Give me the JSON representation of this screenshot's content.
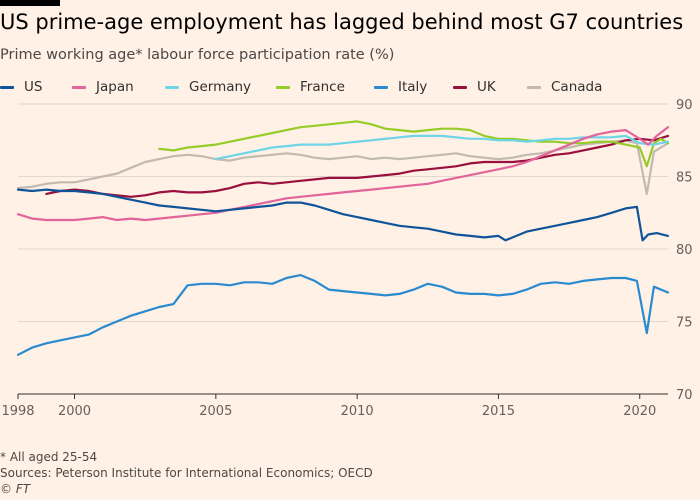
{
  "header": {
    "title": "US prime-age employment has lagged behind most G7 countries",
    "subtitle": "Prime working age* labour force participation rate (%)"
  },
  "footer": {
    "note": "* All aged 25-54",
    "source": "Sources: Peterson Institute for International Economics; OECD",
    "credit": "© FT"
  },
  "chart_data": {
    "type": "line",
    "title": "US prime-age employment has lagged behind most G7 countries",
    "subtitle": "Prime working age* labour force participation rate (%)",
    "xlim": [
      1998,
      2021
    ],
    "ylim": [
      70,
      90
    ],
    "x_ticks": [
      1998,
      2000,
      2005,
      2010,
      2015,
      2020
    ],
    "y_ticks": [
      70,
      75,
      80,
      85,
      90
    ],
    "grid": "horizontal",
    "legend_position": "top",
    "series": [
      {
        "name": "US",
        "color": "#0f5499",
        "x": [
          1998,
          1998.5,
          1999,
          1999.5,
          2000,
          2000.5,
          2001,
          2001.5,
          2002,
          2002.5,
          2003,
          2003.5,
          2004,
          2004.5,
          2005,
          2005.5,
          2006,
          2006.5,
          2007,
          2007.5,
          2008,
          2008.5,
          2009,
          2009.5,
          2010,
          2010.5,
          2011,
          2011.5,
          2012,
          2012.5,
          2013,
          2013.5,
          2014,
          2014.5,
          2015,
          2015.25,
          2015.5,
          2016,
          2016.5,
          2017,
          2017.5,
          2018,
          2018.5,
          2019,
          2019.5,
          2019.9,
          2020.1,
          2020.3,
          2020.6,
          2021
        ],
        "values": [
          84.1,
          84.0,
          84.1,
          84.0,
          84.0,
          83.9,
          83.8,
          83.6,
          83.4,
          83.2,
          83.0,
          82.9,
          82.8,
          82.7,
          82.6,
          82.7,
          82.8,
          82.9,
          83.0,
          83.2,
          83.2,
          83.0,
          82.7,
          82.4,
          82.2,
          82.0,
          81.8,
          81.6,
          81.5,
          81.4,
          81.2,
          81.0,
          80.9,
          80.8,
          80.9,
          80.6,
          80.8,
          81.2,
          81.4,
          81.6,
          81.8,
          82.0,
          82.2,
          82.5,
          82.8,
          82.9,
          80.6,
          81.0,
          81.1,
          80.9
        ]
      },
      {
        "name": "Japan",
        "color": "#e3649b",
        "x": [
          1998,
          1998.5,
          1999,
          1999.5,
          2000,
          2000.5,
          2001,
          2001.5,
          2002,
          2002.5,
          2003,
          2003.5,
          2004,
          2004.5,
          2005,
          2005.5,
          2006,
          2006.5,
          2007,
          2007.5,
          2008,
          2008.5,
          2009,
          2009.5,
          2010,
          2010.5,
          2011,
          2011.5,
          2012,
          2012.5,
          2013,
          2013.5,
          2014,
          2014.5,
          2015,
          2015.5,
          2016,
          2016.5,
          2017,
          2017.5,
          2018,
          2018.5,
          2019,
          2019.5,
          2020,
          2020.3,
          2020.6,
          2021
        ],
        "values": [
          82.4,
          82.1,
          82.0,
          82.0,
          82.0,
          82.1,
          82.2,
          82.0,
          82.1,
          82.0,
          82.1,
          82.2,
          82.3,
          82.4,
          82.5,
          82.7,
          82.9,
          83.1,
          83.3,
          83.5,
          83.6,
          83.7,
          83.8,
          83.9,
          84.0,
          84.1,
          84.2,
          84.3,
          84.4,
          84.5,
          84.7,
          84.9,
          85.1,
          85.3,
          85.5,
          85.7,
          86.0,
          86.4,
          86.8,
          87.2,
          87.6,
          87.9,
          88.1,
          88.2,
          87.6,
          87.2,
          87.8,
          88.4
        ]
      },
      {
        "name": "Germany",
        "color": "#6ed4e8",
        "x": [
          2005,
          2005.5,
          2006,
          2006.5,
          2007,
          2007.5,
          2008,
          2008.5,
          2009,
          2009.5,
          2010,
          2010.5,
          2011,
          2011.5,
          2012,
          2012.5,
          2013,
          2013.5,
          2014,
          2014.5,
          2015,
          2015.5,
          2016,
          2016.5,
          2017,
          2017.5,
          2018,
          2018.5,
          2019,
          2019.5,
          2020,
          2020.5,
          2021
        ],
        "values": [
          86.2,
          86.4,
          86.6,
          86.8,
          87.0,
          87.1,
          87.2,
          87.2,
          87.2,
          87.3,
          87.4,
          87.5,
          87.6,
          87.7,
          87.8,
          87.8,
          87.8,
          87.7,
          87.6,
          87.6,
          87.5,
          87.5,
          87.4,
          87.5,
          87.6,
          87.6,
          87.7,
          87.7,
          87.7,
          87.8,
          87.3,
          87.2,
          87.4
        ]
      },
      {
        "name": "France",
        "color": "#96cc28",
        "x": [
          2003,
          2003.5,
          2004,
          2004.5,
          2005,
          2005.5,
          2006,
          2006.5,
          2007,
          2007.5,
          2008,
          2008.5,
          2009,
          2009.5,
          2010,
          2010.5,
          2011,
          2011.5,
          2012,
          2012.5,
          2013,
          2013.5,
          2014,
          2014.5,
          2015,
          2015.5,
          2016,
          2016.5,
          2017,
          2017.5,
          2018,
          2018.5,
          2019,
          2019.5,
          2020,
          2020.25,
          2020.5,
          2020.75,
          2021
        ],
        "values": [
          86.9,
          86.8,
          87.0,
          87.1,
          87.2,
          87.4,
          87.6,
          87.8,
          88.0,
          88.2,
          88.4,
          88.5,
          88.6,
          88.7,
          88.8,
          88.6,
          88.3,
          88.2,
          88.1,
          88.2,
          88.3,
          88.3,
          88.2,
          87.8,
          87.6,
          87.6,
          87.5,
          87.4,
          87.4,
          87.3,
          87.3,
          87.4,
          87.4,
          87.2,
          87.0,
          85.7,
          87.3,
          87.6,
          87.3
        ]
      },
      {
        "name": "Italy",
        "color": "#2a8ad0",
        "x": [
          1998,
          1998.5,
          1999,
          1999.5,
          2000,
          2000.5,
          2001,
          2001.5,
          2002,
          2002.5,
          2003,
          2003.5,
          2004,
          2004.5,
          2005,
          2005.5,
          2006,
          2006.5,
          2007,
          2007.5,
          2008,
          2008.5,
          2009,
          2009.5,
          2010,
          2010.5,
          2011,
          2011.5,
          2012,
          2012.5,
          2013,
          2013.5,
          2014,
          2014.5,
          2015,
          2015.5,
          2016,
          2016.5,
          2017,
          2017.5,
          2018,
          2018.5,
          2019,
          2019.5,
          2019.9,
          2020.25,
          2020.5,
          2021
        ],
        "values": [
          72.7,
          73.2,
          73.5,
          73.7,
          73.9,
          74.1,
          74.6,
          75.0,
          75.4,
          75.7,
          76.0,
          76.2,
          77.5,
          77.6,
          77.6,
          77.5,
          77.7,
          77.7,
          77.6,
          78.0,
          78.2,
          77.8,
          77.2,
          77.1,
          77.0,
          76.9,
          76.8,
          76.9,
          77.2,
          77.6,
          77.4,
          77.0,
          76.9,
          76.9,
          76.8,
          76.9,
          77.2,
          77.6,
          77.7,
          77.6,
          77.8,
          77.9,
          78.0,
          78.0,
          77.8,
          74.2,
          77.4,
          77.0
        ]
      },
      {
        "name": "UK",
        "color": "#990f3d",
        "x": [
          1999,
          1999.5,
          2000,
          2000.5,
          2001,
          2001.5,
          2002,
          2002.5,
          2003,
          2003.5,
          2004,
          2004.5,
          2005,
          2005.5,
          2006,
          2006.5,
          2007,
          2007.5,
          2008,
          2008.5,
          2009,
          2009.5,
          2010,
          2010.5,
          2011,
          2011.5,
          2012,
          2012.5,
          2013,
          2013.5,
          2014,
          2014.5,
          2015,
          2015.5,
          2016,
          2016.5,
          2017,
          2017.5,
          2018,
          2018.5,
          2019,
          2019.5,
          2020,
          2020.5,
          2021
        ],
        "values": [
          83.8,
          84.0,
          84.1,
          84.0,
          83.8,
          83.7,
          83.6,
          83.7,
          83.9,
          84.0,
          83.9,
          83.9,
          84.0,
          84.2,
          84.5,
          84.6,
          84.5,
          84.6,
          84.7,
          84.8,
          84.9,
          84.9,
          84.9,
          85.0,
          85.1,
          85.2,
          85.4,
          85.5,
          85.6,
          85.7,
          85.9,
          86.0,
          86.0,
          86.0,
          86.1,
          86.3,
          86.5,
          86.6,
          86.8,
          87.0,
          87.2,
          87.5,
          87.6,
          87.5,
          87.8
        ]
      },
      {
        "name": "Canada",
        "color": "#c2b9b0",
        "x": [
          1998,
          1998.5,
          1999,
          1999.5,
          2000,
          2000.5,
          2001,
          2001.5,
          2002,
          2002.5,
          2003,
          2003.5,
          2004,
          2004.5,
          2005,
          2005.5,
          2006,
          2006.5,
          2007,
          2007.5,
          2008,
          2008.5,
          2009,
          2009.5,
          2010,
          2010.5,
          2011,
          2011.5,
          2012,
          2012.5,
          2013,
          2013.5,
          2014,
          2014.5,
          2015,
          2015.5,
          2016,
          2016.5,
          2017,
          2017.5,
          2018,
          2018.5,
          2019,
          2019.5,
          2019.9,
          2020.25,
          2020.5,
          2021
        ],
        "values": [
          84.2,
          84.3,
          84.5,
          84.6,
          84.6,
          84.8,
          85.0,
          85.2,
          85.6,
          86.0,
          86.2,
          86.4,
          86.5,
          86.4,
          86.2,
          86.1,
          86.3,
          86.4,
          86.5,
          86.6,
          86.5,
          86.3,
          86.2,
          86.3,
          86.4,
          86.2,
          86.3,
          86.2,
          86.3,
          86.4,
          86.5,
          86.6,
          86.4,
          86.3,
          86.2,
          86.3,
          86.5,
          86.6,
          86.8,
          87.0,
          87.2,
          87.3,
          87.4,
          87.5,
          87.3,
          83.8,
          86.7,
          87.3
        ]
      }
    ],
    "footnote": "* All aged 25-54",
    "source": "Sources: Peterson Institute for International Economics; OECD"
  }
}
